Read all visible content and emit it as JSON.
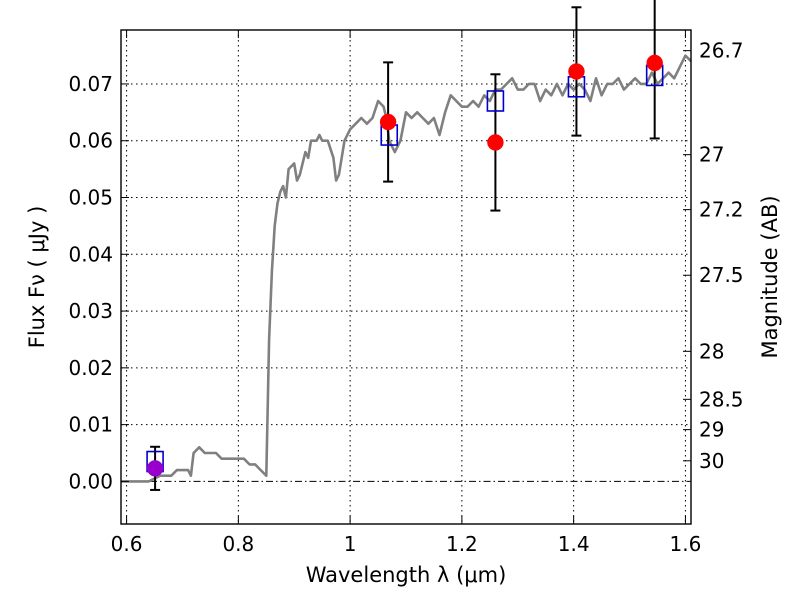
{
  "chart_data": {
    "type": "scatter",
    "title": "",
    "xlabel": "Wavelength  λ (μm)",
    "ylabel": "Flux  Fν  ( μJy )",
    "y2label": "Magnitude (AB)",
    "xlim": [
      0.59,
      1.61
    ],
    "ylim": [
      -0.0075,
      0.0795
    ],
    "x_ticks": [
      {
        "value": 0.6,
        "label": "0.6"
      },
      {
        "value": 0.8,
        "label": "0.8"
      },
      {
        "value": 1.0,
        "label": "1"
      },
      {
        "value": 1.2,
        "label": "1.2"
      },
      {
        "value": 1.4,
        "label": "1.4"
      },
      {
        "value": 1.6,
        "label": "1.6"
      }
    ],
    "y_ticks": [
      {
        "value": 0.0,
        "label": "0.00"
      },
      {
        "value": 0.01,
        "label": "0.01"
      },
      {
        "value": 0.02,
        "label": "0.02"
      },
      {
        "value": 0.03,
        "label": "0.03"
      },
      {
        "value": 0.04,
        "label": "0.04"
      },
      {
        "value": 0.05,
        "label": "0.05"
      },
      {
        "value": 0.06,
        "label": "0.06"
      },
      {
        "value": 0.07,
        "label": "0.07"
      }
    ],
    "mag_ticks": [
      {
        "mag": 26.7,
        "label": "26.7"
      },
      {
        "mag": 27.0,
        "label": "27"
      },
      {
        "mag": 27.2,
        "label": "27.2"
      },
      {
        "mag": 27.5,
        "label": "27.5"
      },
      {
        "mag": 28.0,
        "label": "28"
      },
      {
        "mag": 28.5,
        "label": "28.5"
      },
      {
        "mag": 29.0,
        "label": "29"
      },
      {
        "mag": 30.0,
        "label": "30"
      }
    ],
    "grid": true,
    "zero_line": true,
    "colors": {
      "model": "#808080",
      "observed": "#ff0000",
      "limit": "#9900cc",
      "synthetic": "#0000cc",
      "errorbar": "#000000"
    },
    "series": [
      {
        "kind": "line",
        "x": [
          0.59,
          0.64,
          0.66,
          0.67,
          0.68,
          0.69,
          0.7,
          0.71,
          0.715,
          0.72,
          0.73,
          0.74,
          0.75,
          0.76,
          0.77,
          0.78,
          0.79,
          0.8,
          0.81,
          0.82,
          0.83,
          0.84,
          0.85,
          0.855,
          0.86,
          0.865,
          0.87,
          0.875,
          0.88,
          0.885,
          0.89,
          0.9,
          0.905,
          0.91,
          0.92,
          0.925,
          0.93,
          0.94,
          0.945,
          0.95,
          0.96,
          0.97,
          0.975,
          0.98,
          0.99,
          1.0,
          1.01,
          1.02,
          1.03,
          1.04,
          1.05,
          1.06,
          1.065,
          1.07,
          1.08,
          1.09,
          1.1,
          1.11,
          1.12,
          1.13,
          1.14,
          1.15,
          1.16,
          1.17,
          1.18,
          1.19,
          1.2,
          1.21,
          1.22,
          1.23,
          1.24,
          1.25,
          1.26,
          1.27,
          1.28,
          1.29,
          1.3,
          1.31,
          1.32,
          1.33,
          1.34,
          1.35,
          1.36,
          1.37,
          1.38,
          1.39,
          1.4,
          1.41,
          1.42,
          1.43,
          1.44,
          1.45,
          1.46,
          1.47,
          1.48,
          1.49,
          1.5,
          1.51,
          1.52,
          1.53,
          1.54,
          1.55,
          1.56,
          1.57,
          1.58,
          1.59,
          1.6,
          1.61
        ],
        "y": [
          0.0,
          0.0,
          0.001,
          0.001,
          0.001,
          0.002,
          0.002,
          0.002,
          0.001,
          0.005,
          0.006,
          0.005,
          0.005,
          0.005,
          0.004,
          0.004,
          0.004,
          0.004,
          0.004,
          0.003,
          0.003,
          0.002,
          0.001,
          0.025,
          0.037,
          0.045,
          0.049,
          0.051,
          0.052,
          0.05,
          0.055,
          0.056,
          0.053,
          0.054,
          0.058,
          0.057,
          0.06,
          0.06,
          0.061,
          0.06,
          0.06,
          0.057,
          0.053,
          0.054,
          0.06,
          0.062,
          0.063,
          0.064,
          0.063,
          0.064,
          0.067,
          0.066,
          0.064,
          0.06,
          0.058,
          0.06,
          0.065,
          0.064,
          0.065,
          0.064,
          0.063,
          0.064,
          0.061,
          0.065,
          0.068,
          0.067,
          0.066,
          0.066,
          0.067,
          0.066,
          0.068,
          0.067,
          0.069,
          0.069,
          0.07,
          0.071,
          0.069,
          0.069,
          0.07,
          0.07,
          0.067,
          0.069,
          0.068,
          0.07,
          0.068,
          0.07,
          0.069,
          0.07,
          0.069,
          0.067,
          0.071,
          0.068,
          0.07,
          0.07,
          0.071,
          0.069,
          0.07,
          0.071,
          0.07,
          0.07,
          0.072,
          0.07,
          0.071,
          0.072,
          0.071,
          0.073,
          0.075,
          0.074
        ]
      },
      {
        "kind": "points",
        "marker": "square",
        "x": [
          0.651,
          1.07,
          1.26,
          1.405,
          1.545
        ],
        "y": [
          0.0035,
          0.061,
          0.067,
          0.0695,
          0.0715
        ]
      },
      {
        "kind": "points",
        "marker": "circle",
        "x": [
          1.068,
          1.26,
          1.405,
          1.545
        ],
        "y": [
          0.0633,
          0.0597,
          0.0722,
          0.0737
        ],
        "yerr": [
          0.0105,
          0.012,
          0.0113,
          0.0133
        ]
      },
      {
        "kind": "points",
        "marker": "circle",
        "x": [
          0.651
        ],
        "y": [
          0.0023
        ],
        "yerr": [
          0.0038
        ]
      }
    ]
  }
}
